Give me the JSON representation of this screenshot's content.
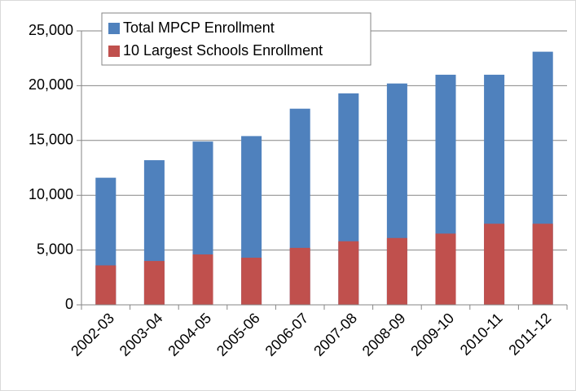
{
  "chart_data": {
    "type": "bar",
    "categories": [
      "2002-03",
      "2003-04",
      "2004-05",
      "2005-06",
      "2006-07",
      "2007-08",
      "2008-09",
      "2009-10",
      "2010-11",
      "2011-12"
    ],
    "series": [
      {
        "name": "Total MPCP Enrollment",
        "color": "#4f81bd",
        "values": [
          11600,
          13200,
          14900,
          15400,
          17900,
          19300,
          20200,
          21000,
          21000,
          23100
        ]
      },
      {
        "name": "10 Largest Schools Enrollment",
        "color": "#c0504d",
        "values": [
          3600,
          4000,
          4600,
          4300,
          5200,
          5800,
          6100,
          6500,
          7400,
          7400
        ]
      }
    ],
    "ylim": [
      0,
      25000
    ],
    "yticks": [
      {
        "value": 0,
        "label": "0"
      },
      {
        "value": 5000,
        "label": "5,000"
      },
      {
        "value": 10000,
        "label": "10,000"
      },
      {
        "value": 15000,
        "label": "15,000"
      },
      {
        "value": 20000,
        "label": "20,000"
      },
      {
        "value": 25000,
        "label": "25,000"
      }
    ],
    "grid": true
  }
}
